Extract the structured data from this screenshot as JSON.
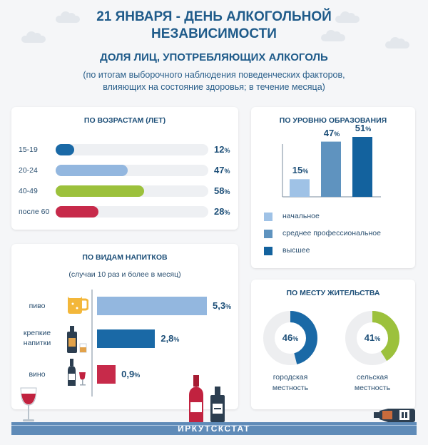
{
  "header": {
    "title_line1": "21 ЯНВАРЯ - ДЕНЬ АЛКОГОЛЬНОЙ",
    "title_line2": "НЕЗАВИСИМОСТИ",
    "subtitle": "ДОЛЯ ЛИЦ, УПОТРЕБЛЯЮЩИХ АЛКОГОЛЬ",
    "note_line1": "(по итогам выборочного наблюдения поведенческих факторов,",
    "note_line2": "влияющих на состояние здоровья; в течение месяца)"
  },
  "colors": {
    "text": "#1d4f78",
    "track": "#eef0f3",
    "bar_blue": "#93b7df",
    "bar_dark": "#1a69a6",
    "bar_green": "#9cc13c",
    "bar_red": "#c72a4a",
    "edu_light": "#9fc2e6",
    "edu_mid": "#5f93bf",
    "edu_dark": "#13629e",
    "donut_bg": "#edeef0"
  },
  "chart_data": [
    {
      "type": "bar",
      "orientation": "horizontal",
      "title": "ПО ВОЗРАСТАМ (ЛЕТ)",
      "categories": [
        "15-19",
        "20-24",
        "40-49",
        "после 60"
      ],
      "values": [
        12,
        47,
        58,
        28
      ],
      "value_labels": [
        "12",
        "47",
        "58",
        "28"
      ],
      "unit": "%",
      "xlim": [
        0,
        100
      ],
      "bar_colors": [
        "#1a69a6",
        "#93b7df",
        "#9cc13c",
        "#c72a4a"
      ]
    },
    {
      "type": "bar",
      "orientation": "vertical",
      "title": "ПО УРОВНЮ ОБРАЗОВАНИЯ",
      "categories": [
        "начальное",
        "среднее профессиональное",
        "высшее"
      ],
      "values": [
        15,
        47,
        51
      ],
      "value_labels": [
        "15",
        "47",
        "51"
      ],
      "unit": "%",
      "ylim": [
        0,
        60
      ],
      "legend": "bottom",
      "bar_colors": [
        "#9fc2e6",
        "#5f93bf",
        "#13629e"
      ]
    },
    {
      "type": "bar",
      "orientation": "horizontal",
      "title": "ПО ВИДАМ НАПИТКОВ",
      "subtitle": "(случаи 10 раз и более в месяц)",
      "categories": [
        "пиво",
        "крепкие напитки",
        "вино"
      ],
      "category_lines": [
        [
          "пиво"
        ],
        [
          "крепкие",
          "напитки"
        ],
        [
          "вино"
        ]
      ],
      "values": [
        5.3,
        2.8,
        0.9
      ],
      "value_labels": [
        "5,3",
        "2,8",
        "0,9"
      ],
      "unit": "%",
      "xlim": [
        0,
        5.3
      ],
      "bar_colors": [
        "#93b7df",
        "#1a69a6",
        "#c72a4a"
      ]
    },
    {
      "type": "pie",
      "title": "ПО МЕСТУ ЖИТЕЛЬСТВА",
      "items": [
        {
          "label_lines": [
            "городская",
            "местность"
          ],
          "value": 46,
          "value_label": "46",
          "color": "#1a69a6"
        },
        {
          "label_lines": [
            "сельская",
            "местность"
          ],
          "value": 41,
          "value_label": "41",
          "color": "#9cc13c"
        }
      ],
      "unit": "%"
    }
  ],
  "footer": {
    "text": "ИРКУТСКСТАТ"
  }
}
